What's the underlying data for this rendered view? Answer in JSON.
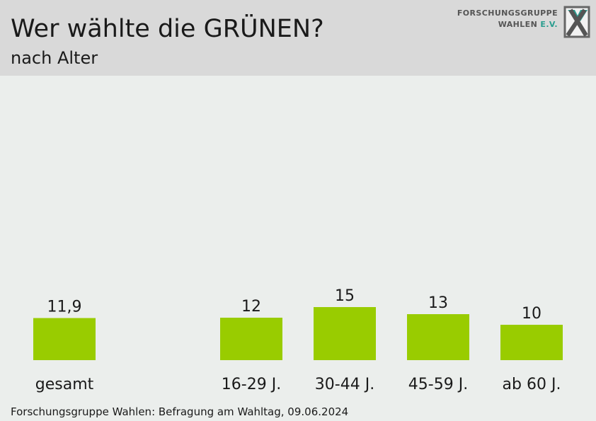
{
  "header": {
    "title": "Wer wählte die GRÜNEN?",
    "subtitle": "nach Alter"
  },
  "logo": {
    "line1": "FORSCHUNGSGRUPPE",
    "line2": "WAHLEN",
    "line2_suffix": "E.V.",
    "icon": "fgw-x-logo-icon"
  },
  "colors": {
    "bar": "#99cc00",
    "header_bg": "#d9d9d9",
    "background": "#ebeeec"
  },
  "chart_data": {
    "type": "bar",
    "categories": [
      "gesamt",
      "16-29 J.",
      "30-44 J.",
      "45-59 J.",
      "ab 60 J."
    ],
    "values": [
      11.9,
      12,
      15,
      13,
      10
    ],
    "value_labels": [
      "11,9",
      "12",
      "15",
      "13",
      "10"
    ],
    "title": "Wer wählte die GRÜNEN?",
    "subtitle": "nach Alter",
    "xlabel": "",
    "ylabel": "",
    "grid": false,
    "legend": "none"
  },
  "footer": {
    "source": "Forschungsgruppe Wahlen: Befragung am Wahltag, 09.06.2024"
  }
}
